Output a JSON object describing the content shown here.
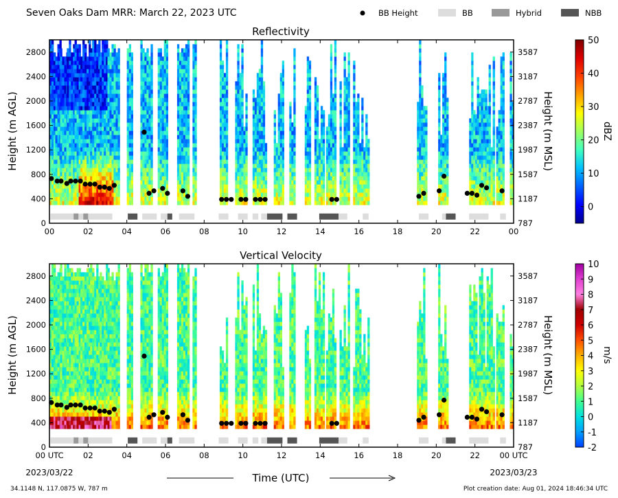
{
  "header": {
    "title": "Seven Oaks Dam MRR:  March 22, 2023 UTC",
    "legend": [
      {
        "label": "BB Height",
        "kind": "dot",
        "color": "#000000"
      },
      {
        "label": "BB",
        "kind": "box",
        "color": "#dddddd"
      },
      {
        "label": "Hybrid",
        "kind": "box",
        "color": "#999999"
      },
      {
        "label": "NBB",
        "kind": "box",
        "color": "#555555"
      }
    ]
  },
  "footer": {
    "location": "34.1148 N, 117.0875 W, 787 m",
    "created": "Plot creation date: Aug 01, 2024 18:46:34 UTC",
    "xlabel": "Time (UTC)",
    "date_start": "2023/03/22",
    "date_end": "2023/03/23"
  },
  "axes": {
    "ylabel_left": "Height (m AGL)",
    "ylabel_right": "Height (m MSL)",
    "x_ticks": [
      "00",
      "02",
      "04",
      "06",
      "08",
      "10",
      "12",
      "14",
      "16",
      "18",
      "20",
      "22",
      "00"
    ],
    "x_ticks_bottom": [
      "00 UTC",
      "02",
      "04",
      "06",
      "08",
      "10",
      "12",
      "14",
      "16",
      "18",
      "20",
      "22",
      "00 UTC"
    ],
    "y_left_ticks": [
      "0",
      "400",
      "800",
      "1200",
      "1600",
      "2000",
      "2400",
      "2800"
    ],
    "y_right_ticks": [
      "787",
      "1187",
      "1587",
      "1987",
      "2387",
      "2787",
      "3187",
      "3587"
    ],
    "xlim_hours": [
      0,
      24
    ],
    "ylim_m_agl": [
      0,
      3000
    ]
  },
  "chart_data": [
    {
      "type": "heatmap",
      "title": "Reflectivity",
      "colorbar_label": "dBZ",
      "colorbar_ticks": [
        "0",
        "10",
        "20",
        "30",
        "40",
        "50"
      ],
      "colorbar_range": [
        -5,
        50
      ],
      "precip_periods_hours": [
        [
          0,
          0.3
        ],
        [
          0.3,
          0.55
        ],
        [
          0.55,
          0.9
        ],
        [
          0.9,
          1.3
        ],
        [
          1.3,
          1.6
        ],
        [
          1.6,
          2.1
        ],
        [
          2.1,
          2.6
        ],
        [
          2.6,
          3.0
        ],
        [
          3.0,
          3.6
        ],
        [
          4.0,
          4.3
        ],
        [
          4.7,
          5.3
        ],
        [
          5.6,
          6.1
        ],
        [
          6.6,
          7.2
        ],
        [
          7.4,
          7.6
        ],
        [
          8.8,
          9.2
        ],
        [
          9.6,
          10.2
        ],
        [
          10.5,
          11.2
        ],
        [
          11.6,
          12.1
        ],
        [
          12.4,
          12.7
        ],
        [
          13.2,
          13.5
        ],
        [
          13.7,
          14.2
        ],
        [
          14.3,
          14.8
        ],
        [
          15.0,
          15.5
        ],
        [
          15.7,
          16.5
        ],
        [
          19.0,
          19.5
        ],
        [
          20.1,
          20.6
        ],
        [
          21.7,
          22.1
        ],
        [
          22.1,
          22.6
        ],
        [
          22.6,
          23.0
        ],
        [
          23.1,
          23.5
        ],
        [
          23.8,
          24.0
        ]
      ],
      "bb_height_points": [
        {
          "t": 0.1,
          "h": 730
        },
        {
          "t": 0.4,
          "h": 690
        },
        {
          "t": 0.6,
          "h": 690
        },
        {
          "t": 0.9,
          "h": 650
        },
        {
          "t": 1.1,
          "h": 690
        },
        {
          "t": 1.35,
          "h": 690
        },
        {
          "t": 1.6,
          "h": 690
        },
        {
          "t": 1.85,
          "h": 640
        },
        {
          "t": 2.1,
          "h": 640
        },
        {
          "t": 2.35,
          "h": 640
        },
        {
          "t": 2.6,
          "h": 590
        },
        {
          "t": 2.85,
          "h": 590
        },
        {
          "t": 3.1,
          "h": 570
        },
        {
          "t": 3.35,
          "h": 620
        },
        {
          "t": 4.9,
          "h": 1490
        },
        {
          "t": 5.15,
          "h": 490
        },
        {
          "t": 5.4,
          "h": 530
        },
        {
          "t": 5.85,
          "h": 570
        },
        {
          "t": 6.1,
          "h": 490
        },
        {
          "t": 6.9,
          "h": 530
        },
        {
          "t": 7.15,
          "h": 440
        },
        {
          "t": 8.9,
          "h": 390
        },
        {
          "t": 9.15,
          "h": 390
        },
        {
          "t": 9.4,
          "h": 390
        },
        {
          "t": 9.9,
          "h": 390
        },
        {
          "t": 10.15,
          "h": 390
        },
        {
          "t": 10.65,
          "h": 390
        },
        {
          "t": 10.9,
          "h": 390
        },
        {
          "t": 11.15,
          "h": 390
        },
        {
          "t": 14.6,
          "h": 390
        },
        {
          "t": 14.85,
          "h": 390
        },
        {
          "t": 19.1,
          "h": 440
        },
        {
          "t": 19.35,
          "h": 490
        },
        {
          "t": 20.15,
          "h": 530
        },
        {
          "t": 20.4,
          "h": 770
        },
        {
          "t": 21.6,
          "h": 490
        },
        {
          "t": 21.85,
          "h": 490
        },
        {
          "t": 22.1,
          "h": 460
        },
        {
          "t": 22.35,
          "h": 620
        },
        {
          "t": 22.6,
          "h": 580
        },
        {
          "t": 23.4,
          "h": 530
        }
      ],
      "bb_type_intervals": [
        {
          "start": 0.05,
          "end": 3.25,
          "type": "BB"
        },
        {
          "start": 1.25,
          "end": 1.5,
          "type": "Hybrid"
        },
        {
          "start": 1.75,
          "end": 2.0,
          "type": "Hybrid"
        },
        {
          "start": 4.05,
          "end": 4.55,
          "type": "NBB"
        },
        {
          "start": 4.8,
          "end": 5.55,
          "type": "BB"
        },
        {
          "start": 5.75,
          "end": 6.1,
          "type": "BB"
        },
        {
          "start": 6.1,
          "end": 6.35,
          "type": "NBB"
        },
        {
          "start": 6.7,
          "end": 7.5,
          "type": "BB"
        },
        {
          "start": 8.75,
          "end": 9.25,
          "type": "BB"
        },
        {
          "start": 9.75,
          "end": 10.25,
          "type": "BB"
        },
        {
          "start": 10.5,
          "end": 10.8,
          "type": "BB"
        },
        {
          "start": 10.95,
          "end": 11.25,
          "type": "BB"
        },
        {
          "start": 11.25,
          "end": 12.05,
          "type": "NBB"
        },
        {
          "start": 12.3,
          "end": 12.8,
          "type": "NBB"
        },
        {
          "start": 13.95,
          "end": 14.95,
          "type": "NBB"
        },
        {
          "start": 14.95,
          "end": 15.4,
          "type": "BB"
        },
        {
          "start": 16.2,
          "end": 16.5,
          "type": "BB"
        },
        {
          "start": 19.1,
          "end": 19.6,
          "type": "BB"
        },
        {
          "start": 20.3,
          "end": 20.5,
          "type": "BB"
        },
        {
          "start": 20.5,
          "end": 21.0,
          "type": "NBB"
        },
        {
          "start": 21.7,
          "end": 22.7,
          "type": "BB"
        },
        {
          "start": 23.3,
          "end": 23.6,
          "type": "BB"
        }
      ]
    },
    {
      "type": "heatmap",
      "title": "Vertical Velocity",
      "colorbar_label": "m/s",
      "colorbar_ticks": [
        "-2",
        "-1",
        "0",
        "1",
        "2",
        "3",
        "4",
        "5",
        "6",
        "7",
        "8",
        "9",
        "10"
      ],
      "colorbar_range": [
        -2,
        10
      ],
      "precip_periods_hours": [
        [
          0,
          0.3
        ],
        [
          0.3,
          0.55
        ],
        [
          0.55,
          0.9
        ],
        [
          0.9,
          1.3
        ],
        [
          1.3,
          1.6
        ],
        [
          1.6,
          2.1
        ],
        [
          2.1,
          2.6
        ],
        [
          2.6,
          3.0
        ],
        [
          3.0,
          3.6
        ],
        [
          4.0,
          4.3
        ],
        [
          4.7,
          5.3
        ],
        [
          5.6,
          6.1
        ],
        [
          6.6,
          7.2
        ],
        [
          7.4,
          7.6
        ],
        [
          8.8,
          9.2
        ],
        [
          9.6,
          10.2
        ],
        [
          10.5,
          11.2
        ],
        [
          11.6,
          12.1
        ],
        [
          12.4,
          12.7
        ],
        [
          13.2,
          13.5
        ],
        [
          13.7,
          14.2
        ],
        [
          14.3,
          14.8
        ],
        [
          15.0,
          15.5
        ],
        [
          15.7,
          16.5
        ],
        [
          19.0,
          19.5
        ],
        [
          20.1,
          20.6
        ],
        [
          21.7,
          22.1
        ],
        [
          22.1,
          22.6
        ],
        [
          22.6,
          23.0
        ],
        [
          23.1,
          23.5
        ],
        [
          23.8,
          24.0
        ]
      ],
      "bb_height_points": "same as Reflectivity",
      "bb_type_intervals": "same as Reflectivity"
    }
  ],
  "colors": {
    "dbz_scale": [
      "#00008f",
      "#0000ff",
      "#0060ff",
      "#00c0ff",
      "#40ffbf",
      "#9fff60",
      "#ffff00",
      "#ff9f00",
      "#ff4000",
      "#df0000",
      "#800000"
    ],
    "vv_scale": [
      "#0040ff",
      "#00a0ff",
      "#00e0e0",
      "#40ff90",
      "#b0ff40",
      "#ffff00",
      "#ffb000",
      "#ff5000",
      "#d00000",
      "#a00000",
      "#ff80e0",
      "#e040d0",
      "#a000a0"
    ]
  }
}
